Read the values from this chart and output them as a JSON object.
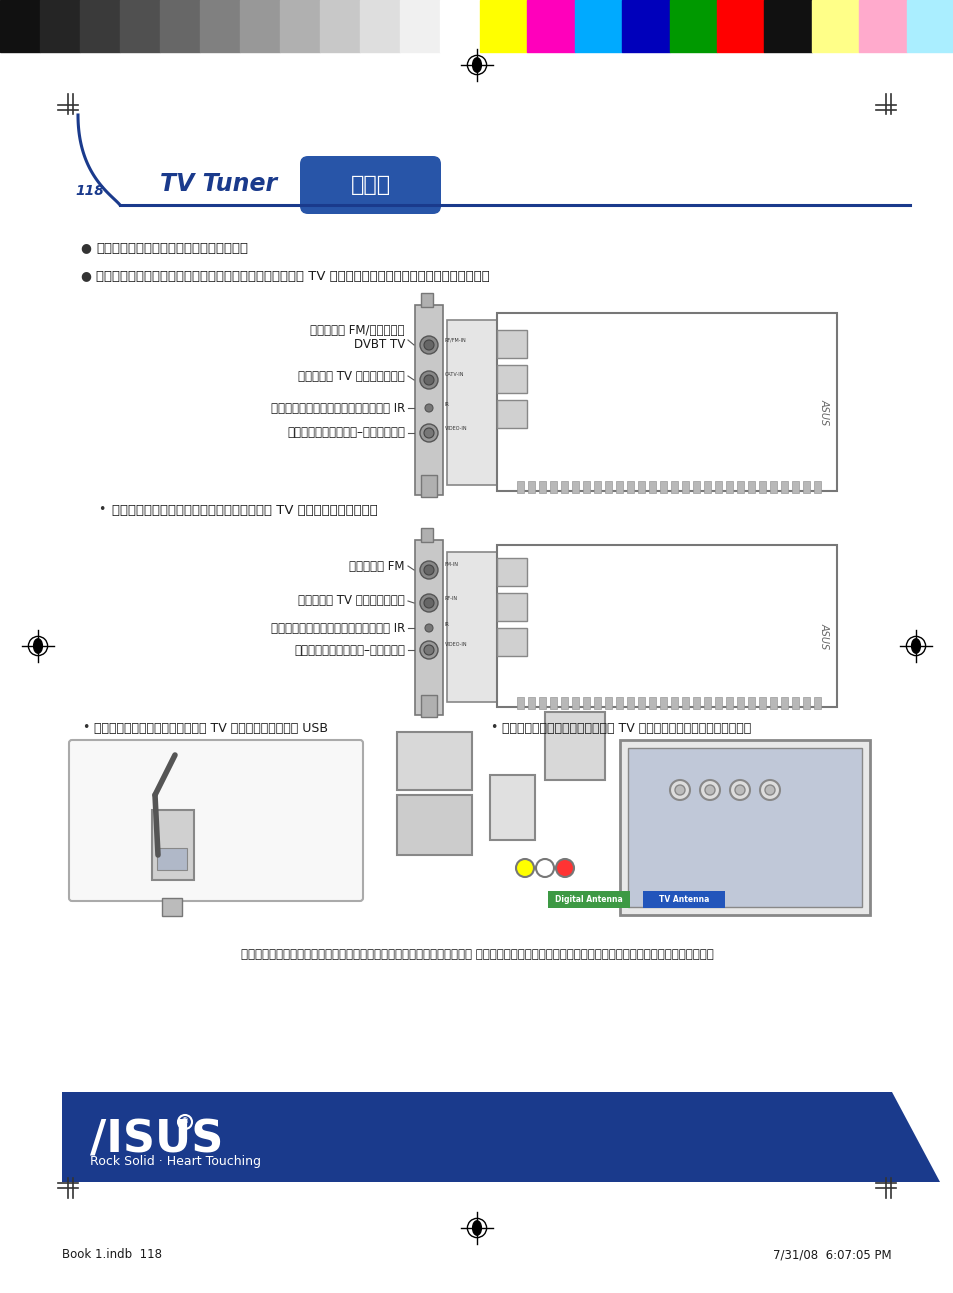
{
  "bg_color": "#ffffff",
  "page_num": "118",
  "title_text": "TV Tuner",
  "title_color": "#1a3a8c",
  "badge_text": "ไทย",
  "badge_bg": "#2855a8",
  "badge_text_color": "#ffffff",
  "header_line_color": "#1a3a8c",
  "bullet1_bold": "การเชื่อมต่ออุปกรณ์",
  "bullet2": "การเชื่อมต่อกับการ์ดไฮบริด TV แบบดิจิตอลและอนาล็อก",
  "label1_line1": "วิทยุ FM/พอร์ต",
  "label1_line2": "DVBT TV",
  "label1_analog": "พอร์ด TV อนาล็อก",
  "label1_ir": "พอร์ดตัวรับสัญญาณ IR",
  "label1_av": "พอร์ดเสียง–วิดีโอ",
  "sub_bullet_analog": "การเชื่อมต่อกับการ์ด TV แบบอนาล็อก",
  "label2_fm": "วิทยุ FM",
  "label2_tv": "พอร์ด TV อนาล็อก",
  "label2_ir": "พอร์ดตัวรับสัญญาณ IR",
  "label2_av": "พอร์ดเสียง–วดีโอ",
  "bullet_usb": "การเชื่อมต่อกับ TV บ็อกซ์แบบ USB",
  "bullet_express": "การเชื่อมต่อกับ TV เอ็กซ์เพรสการ์ด",
  "caption": "ภาพวาดใช้สำหรับการอ้างอิงเท่านั้น โครงร่างที่แท้จริงอาจแตกต่างจากนี้",
  "footer_left": "Book 1.indb  118",
  "footer_right": "7/31/08  6:07:05 PM",
  "asus_footer_color": "#1a3a8c",
  "color_bar_grays": [
    "#111111",
    "#252525",
    "#3a3a3a",
    "#505050",
    "#676767",
    "#808080",
    "#989898",
    "#b0b0b0",
    "#c8c8c8",
    "#dedede",
    "#f0f0f0",
    "#ffffff"
  ],
  "color_bar_colors": [
    "#ffff00",
    "#ff00bb",
    "#00aaff",
    "#0000bb",
    "#009900",
    "#ff0000",
    "#111111",
    "#ffff88",
    "#ffaacc",
    "#aaeeff"
  ],
  "text_color": "#1a1a1a",
  "bullet_color": "#1a1a1a",
  "card_face_color": "#d8d8d8",
  "card_edge_color": "#777777",
  "slot_face_color": "#f0f0f0",
  "slot_edge_color": "#888888"
}
